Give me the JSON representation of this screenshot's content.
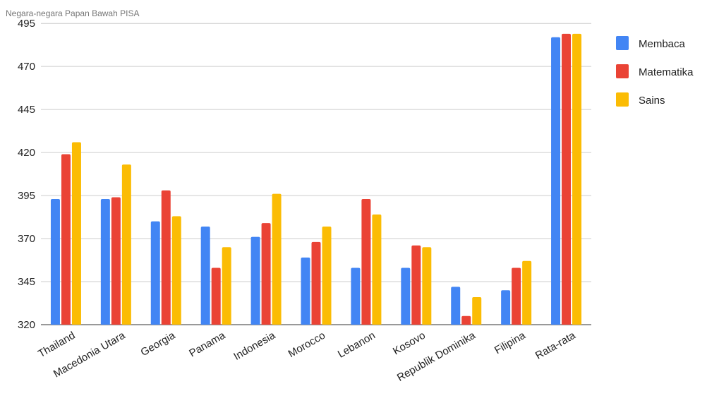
{
  "chart_data": {
    "type": "bar",
    "title": "Negara-negara Papan Bawah PISA",
    "xlabel": "",
    "ylabel": "",
    "ylim": [
      320,
      500
    ],
    "yticks": [
      320,
      345,
      370,
      395,
      420,
      445,
      470,
      495
    ],
    "grid": true,
    "legend_position": "right",
    "categories": [
      "Thailand",
      "Macedonia Utara",
      "Georgia",
      "Panama",
      "Indonesia",
      "Morocco",
      "Lebanon",
      "Kosovo",
      "Republik Dominika",
      "Filipina",
      "Rata-rata"
    ],
    "series": [
      {
        "name": "Membaca",
        "color": "#4285f4",
        "values": [
          393,
          393,
          380,
          377,
          371,
          359,
          353,
          353,
          342,
          340,
          487
        ]
      },
      {
        "name": "Matematika",
        "color": "#ea4335",
        "values": [
          419,
          394,
          398,
          353,
          379,
          368,
          393,
          366,
          325,
          353,
          489
        ]
      },
      {
        "name": "Sains",
        "color": "#fbbc04",
        "values": [
          426,
          413,
          383,
          365,
          396,
          377,
          384,
          365,
          336,
          357,
          489
        ]
      }
    ]
  }
}
